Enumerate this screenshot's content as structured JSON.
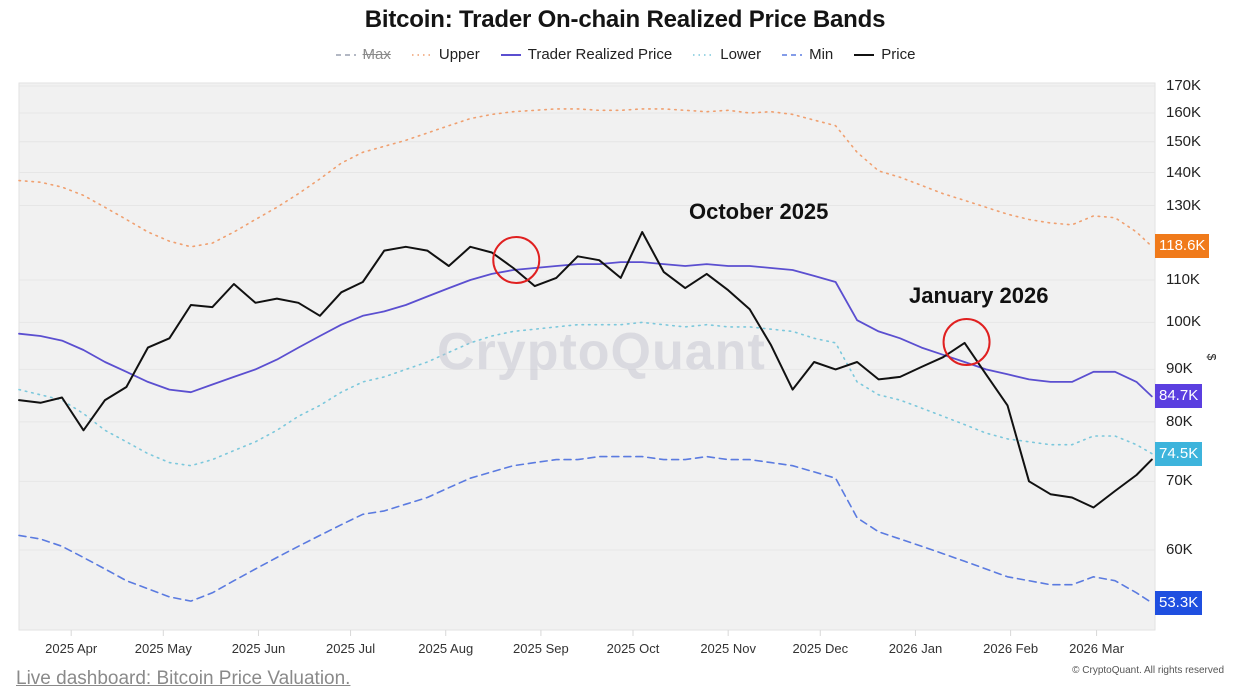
{
  "title": "Bitcoin: Trader On-chain Realized Price Bands",
  "legend": [
    {
      "key": "max",
      "label": "Max",
      "style": "dashed",
      "color": "#9aa0b0",
      "hidden": true
    },
    {
      "key": "upper",
      "label": "Upper",
      "style": "dotted",
      "color": "#f0a070"
    },
    {
      "key": "trp",
      "label": "Trader Realized Price",
      "style": "solid",
      "color": "#5b4fd0"
    },
    {
      "key": "lower",
      "label": "Lower",
      "style": "dotted",
      "color": "#7cc8dc"
    },
    {
      "key": "min",
      "label": "Min",
      "style": "dashed",
      "color": "#5b7be0"
    },
    {
      "key": "price",
      "label": "Price",
      "style": "solid",
      "color": "#111111"
    }
  ],
  "y_axis": {
    "scale": "log",
    "unit": "$",
    "ticks": [
      "170K",
      "160K",
      "150K",
      "140K",
      "130K",
      "110K",
      "100K",
      "90K",
      "80K",
      "70K",
      "60K"
    ],
    "tick_values": [
      170,
      160,
      150,
      140,
      130,
      110,
      100,
      90,
      80,
      70,
      60
    ]
  },
  "badges": [
    {
      "label": "118.6K",
      "value": 118.6,
      "color": "#f07a1a"
    },
    {
      "label": "84.7K",
      "value": 84.7,
      "color": "#5b3fe0"
    },
    {
      "label": "74.5K",
      "value": 74.5,
      "color": "#3db4dc"
    },
    {
      "label": "53.3K",
      "value": 53.3,
      "color": "#1f4fe0"
    }
  ],
  "x_axis": {
    "ticks": [
      "2025 Apr",
      "2025 May",
      "2025 Jun",
      "2025 Jul",
      "2025 Aug",
      "2025 Sep",
      "2025 Oct",
      "2025 Nov",
      "2025 Dec",
      "2026 Jan",
      "2026 Feb",
      "2026 Mar"
    ]
  },
  "annotations": [
    {
      "label": "October 2025",
      "circle_date_index": 23
    },
    {
      "label": "January 2026",
      "circle_date_index": 44
    }
  ],
  "watermark": "CryptoQuant",
  "footer": {
    "link_text": "Live dashboard: Bitcoin Price Valuation.",
    "copyright": "© CryptoQuant. All rights reserved"
  },
  "chart_data": {
    "type": "line",
    "title": "Bitcoin: Trader On-chain Realized Price Bands",
    "xlabel": "",
    "ylabel": "$",
    "y_scale": "log",
    "ylim": [
      50,
      175
    ],
    "grid": true,
    "legend_position": "top",
    "x": [
      "2025-03-15",
      "2025-03-22",
      "2025-03-29",
      "2025-04-05",
      "2025-04-12",
      "2025-04-19",
      "2025-04-26",
      "2025-05-03",
      "2025-05-10",
      "2025-05-17",
      "2025-05-24",
      "2025-05-31",
      "2025-06-07",
      "2025-06-14",
      "2025-06-21",
      "2025-06-28",
      "2025-07-05",
      "2025-07-12",
      "2025-07-19",
      "2025-07-26",
      "2025-08-02",
      "2025-08-09",
      "2025-08-16",
      "2025-08-23",
      "2025-08-30",
      "2025-09-06",
      "2025-09-13",
      "2025-09-20",
      "2025-09-27",
      "2025-10-04",
      "2025-10-11",
      "2025-10-18",
      "2025-10-25",
      "2025-11-01",
      "2025-11-08",
      "2025-11-15",
      "2025-11-22",
      "2025-11-29",
      "2025-12-06",
      "2025-12-13",
      "2025-12-20",
      "2025-12-27",
      "2026-01-03",
      "2026-01-10",
      "2026-01-17",
      "2026-01-24",
      "2026-01-31",
      "2026-02-07",
      "2026-02-14",
      "2026-02-21",
      "2026-02-28",
      "2026-03-07",
      "2026-03-14",
      "2026-03-19"
    ],
    "series": [
      {
        "name": "Upper",
        "values": [
          137.5,
          137.0,
          135.5,
          133.0,
          129.5,
          126.0,
          122.5,
          120.0,
          118.5,
          119.5,
          122.5,
          126.0,
          129.5,
          133.5,
          138.0,
          143.0,
          146.5,
          148.5,
          150.5,
          153.0,
          155.5,
          158.0,
          159.5,
          160.5,
          161.0,
          161.5,
          161.5,
          161.0,
          161.0,
          161.5,
          161.5,
          161.0,
          160.5,
          161.0,
          160.0,
          160.5,
          159.5,
          157.5,
          155.5,
          146.5,
          140.5,
          138.5,
          136.0,
          133.5,
          131.5,
          129.5,
          127.5,
          126.0,
          125.0,
          124.5,
          127.0,
          126.5,
          122.5,
          118.6
        ]
      },
      {
        "name": "Trader Realized Price",
        "values": [
          97.5,
          97.0,
          96.0,
          94.0,
          91.5,
          89.5,
          87.5,
          86.0,
          85.5,
          87.0,
          88.5,
          90.0,
          92.0,
          94.5,
          97.0,
          99.5,
          101.5,
          102.5,
          104.0,
          106.0,
          108.0,
          110.0,
          111.5,
          112.5,
          113.0,
          113.5,
          114.0,
          114.0,
          114.5,
          114.5,
          114.0,
          113.5,
          114.0,
          113.5,
          113.5,
          113.0,
          112.5,
          111.0,
          109.5,
          100.5,
          98.0,
          96.5,
          94.5,
          93.0,
          91.5,
          90.0,
          89.0,
          88.0,
          87.5,
          87.5,
          89.5,
          89.5,
          87.5,
          84.7
        ]
      },
      {
        "name": "Lower",
        "values": [
          86.0,
          85.0,
          84.0,
          81.5,
          78.5,
          76.5,
          74.5,
          73.0,
          72.5,
          73.5,
          75.0,
          76.5,
          78.5,
          81.0,
          83.0,
          85.5,
          87.5,
          88.5,
          90.0,
          91.5,
          93.5,
          95.5,
          97.0,
          98.0,
          98.5,
          99.0,
          99.5,
          99.5,
          99.5,
          100.0,
          99.5,
          99.0,
          99.5,
          99.0,
          99.0,
          98.5,
          98.0,
          96.5,
          95.5,
          87.5,
          85.0,
          84.0,
          82.5,
          81.0,
          79.5,
          78.0,
          77.0,
          76.5,
          76.0,
          76.0,
          77.5,
          77.5,
          76.0,
          74.5
        ]
      },
      {
        "name": "Min",
        "values": [
          62.0,
          61.5,
          60.5,
          59.0,
          57.5,
          56.0,
          55.0,
          54.0,
          53.5,
          54.5,
          56.0,
          57.5,
          59.0,
          60.5,
          62.0,
          63.5,
          65.0,
          65.5,
          66.5,
          67.5,
          69.0,
          70.5,
          71.5,
          72.5,
          73.0,
          73.5,
          73.5,
          74.0,
          74.0,
          74.0,
          73.5,
          73.5,
          74.0,
          73.5,
          73.5,
          73.0,
          72.5,
          71.5,
          70.5,
          64.5,
          62.5,
          61.5,
          60.5,
          59.5,
          58.5,
          57.5,
          56.5,
          56.0,
          55.5,
          55.5,
          56.5,
          56.0,
          54.5,
          53.3
        ]
      },
      {
        "name": "Price",
        "values": [
          84.0,
          83.5,
          84.5,
          78.5,
          84.0,
          86.5,
          94.5,
          96.5,
          104.0,
          103.5,
          109.0,
          104.5,
          105.5,
          104.5,
          101.5,
          107.0,
          109.5,
          117.5,
          118.5,
          117.5,
          113.5,
          118.5,
          117.0,
          113.0,
          108.5,
          110.5,
          116.0,
          115.0,
          110.5,
          122.5,
          112.0,
          108.0,
          111.5,
          107.5,
          103.0,
          95.0,
          86.0,
          91.5,
          90.0,
          91.5,
          88.0,
          88.5,
          90.5,
          92.5,
          95.5,
          89.0,
          83.0,
          70.0,
          68.0,
          67.5,
          66.0,
          68.5,
          71.0,
          73.5
        ]
      }
    ]
  }
}
